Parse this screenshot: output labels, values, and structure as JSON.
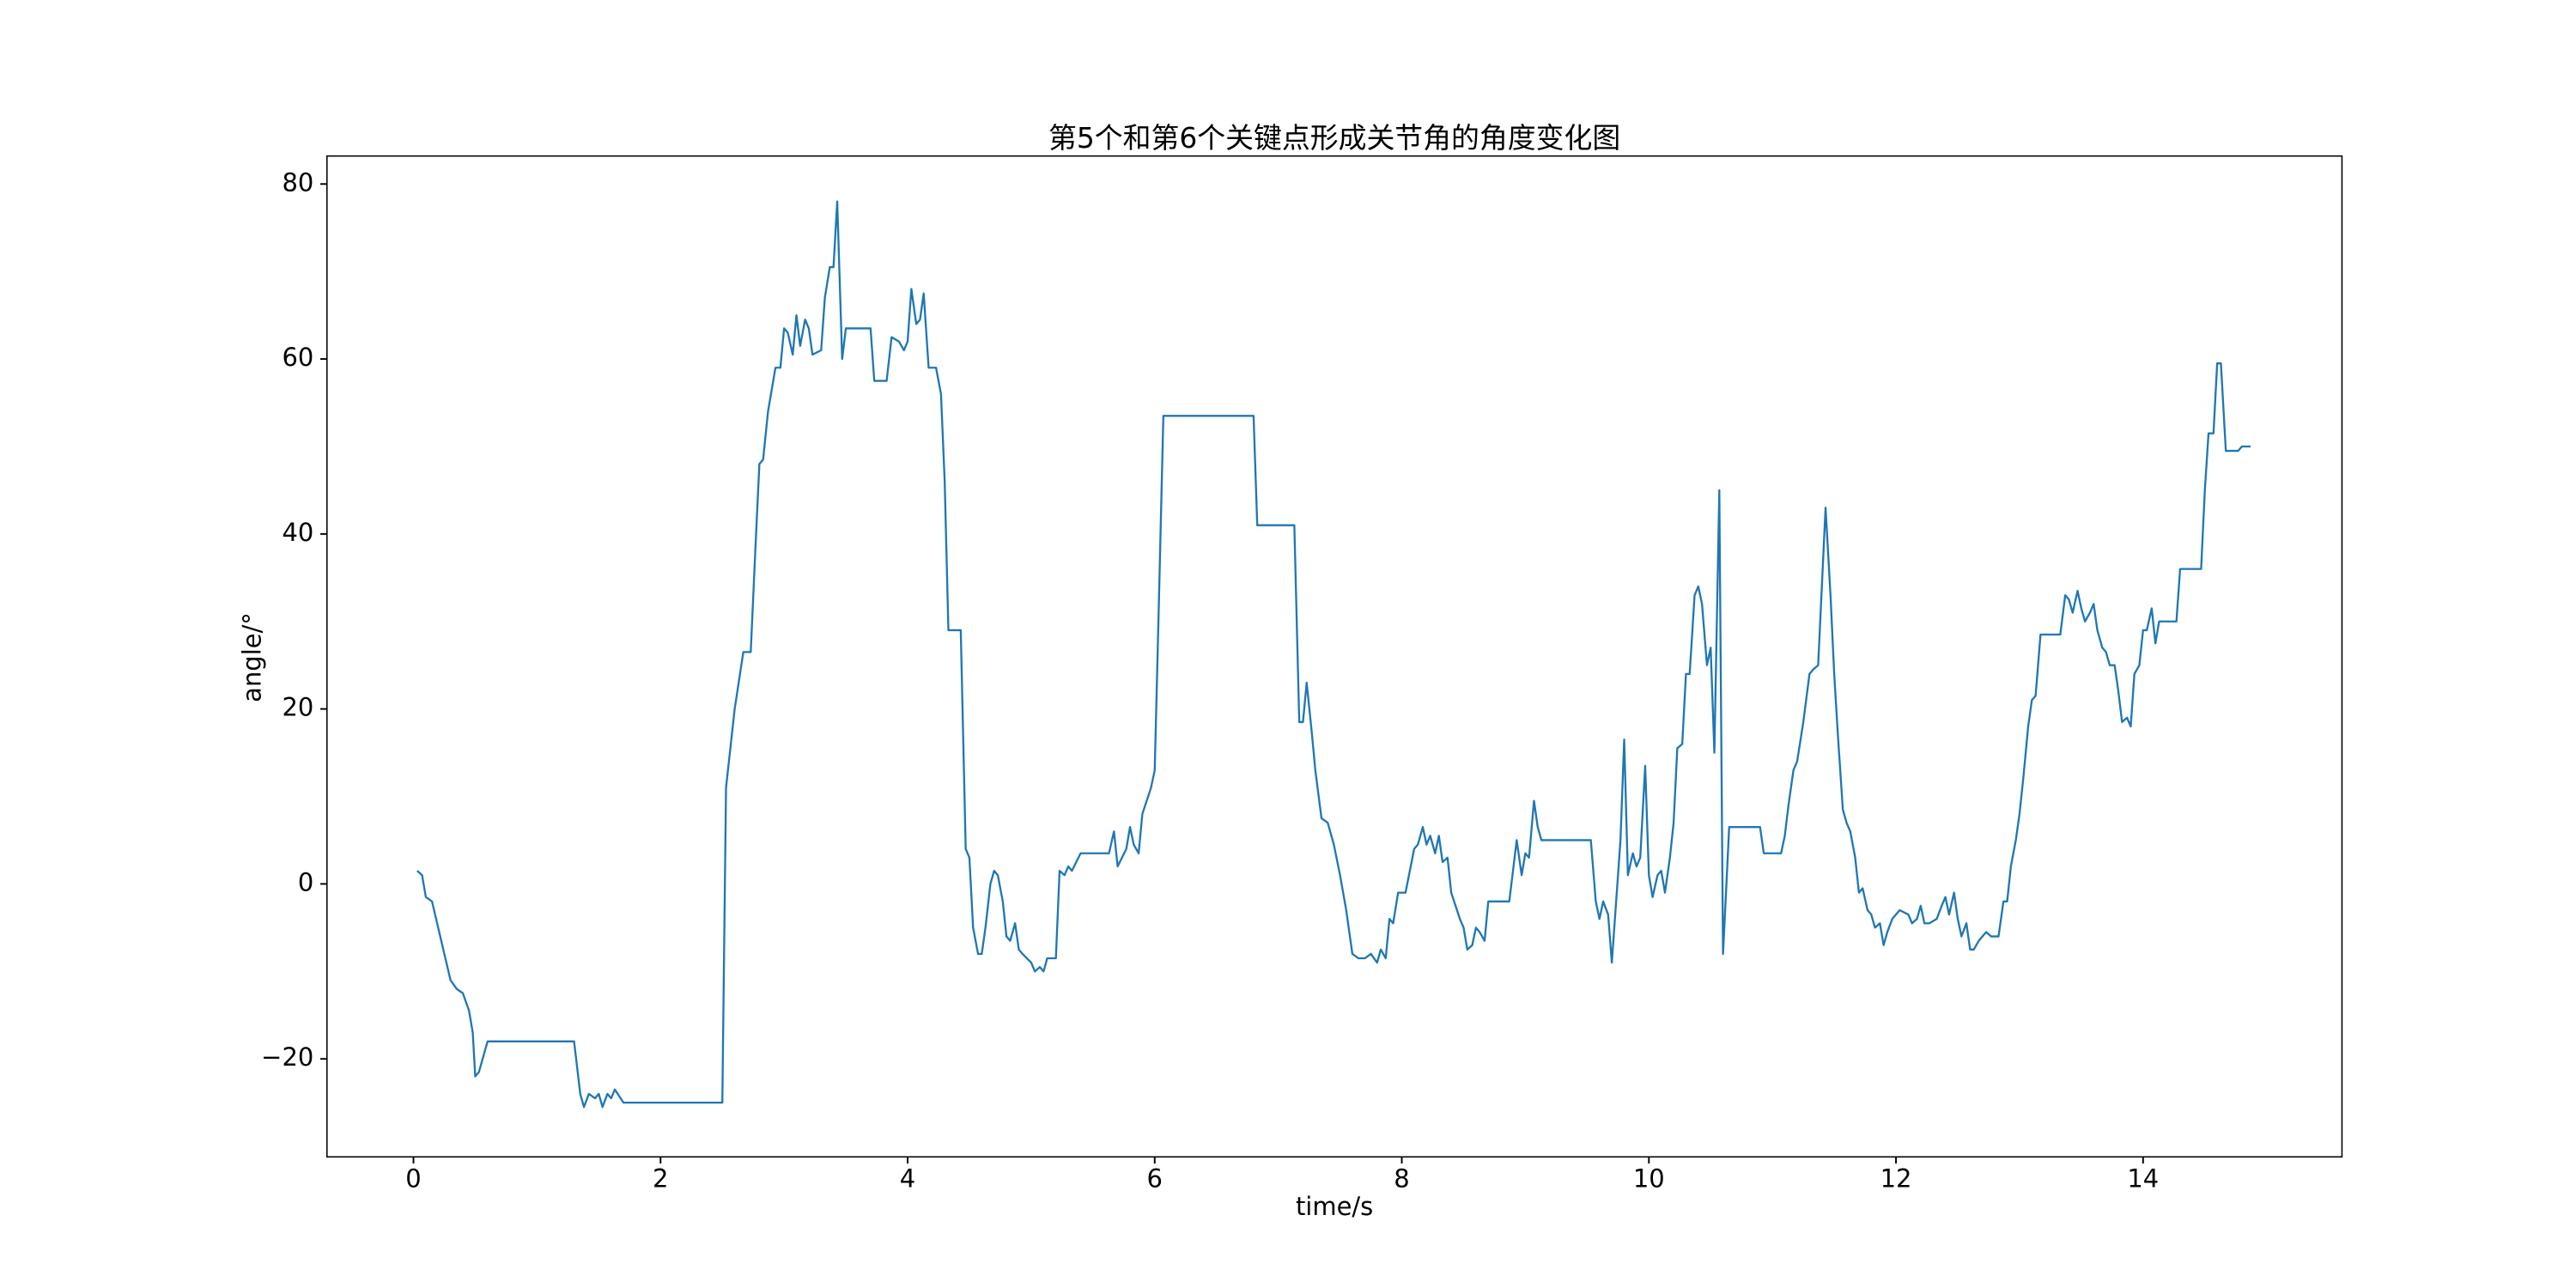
{
  "chart_data": {
    "type": "line",
    "title": "第5个和第6个关键点形成关节角的角度变化图",
    "x_label": "time/s",
    "y_label": "angle/°",
    "color": "#1f77b4",
    "xlim": [
      -0.7,
      15.61
    ],
    "ylim": [
      -31.2,
      83.2
    ],
    "xticks": [
      0,
      2,
      4,
      6,
      8,
      10,
      12,
      14
    ],
    "yticks": [
      {
        "value": -20,
        "label": "−20"
      },
      0,
      20,
      40,
      60,
      80
    ],
    "x": [
      0.03,
      0.07,
      0.1,
      0.15,
      0.2,
      0.3,
      0.35,
      0.4,
      0.45,
      0.48,
      0.5,
      0.53,
      0.6,
      1.3,
      1.35,
      1.38,
      1.42,
      1.47,
      1.5,
      1.53,
      1.57,
      1.6,
      1.63,
      1.7,
      2.5,
      2.53,
      2.6,
      2.67,
      2.73,
      2.77,
      2.8,
      2.83,
      2.87,
      2.93,
      2.97,
      3.0,
      3.03,
      3.07,
      3.1,
      3.13,
      3.17,
      3.2,
      3.23,
      3.3,
      3.33,
      3.37,
      3.4,
      3.43,
      3.47,
      3.5,
      3.7,
      3.73,
      3.83,
      3.87,
      3.93,
      3.97,
      4.0,
      4.03,
      4.07,
      4.1,
      4.13,
      4.17,
      4.23,
      4.27,
      4.3,
      4.33,
      4.43,
      4.47,
      4.5,
      4.53,
      4.57,
      4.6,
      4.63,
      4.67,
      4.7,
      4.73,
      4.77,
      4.8,
      4.83,
      4.87,
      4.9,
      4.93,
      5.0,
      5.03,
      5.07,
      5.1,
      5.13,
      5.2,
      5.23,
      5.27,
      5.3,
      5.33,
      5.4,
      5.63,
      5.67,
      5.7,
      5.77,
      5.8,
      5.83,
      5.87,
      5.9,
      5.97,
      6.0,
      6.03,
      6.07,
      6.8,
      6.83,
      7.13,
      7.17,
      7.2,
      7.23,
      7.27,
      7.3,
      7.35,
      7.4,
      7.45,
      7.5,
      7.55,
      7.6,
      7.65,
      7.7,
      7.75,
      7.8,
      7.83,
      7.87,
      7.9,
      7.93,
      7.97,
      8.03,
      8.1,
      8.13,
      8.17,
      8.2,
      8.23,
      8.27,
      8.3,
      8.33,
      8.37,
      8.4,
      8.47,
      8.5,
      8.53,
      8.57,
      8.6,
      8.63,
      8.67,
      8.7,
      8.87,
      8.93,
      8.97,
      9.0,
      9.03,
      9.07,
      9.1,
      9.13,
      9.53,
      9.57,
      9.6,
      9.63,
      9.67,
      9.7,
      9.73,
      9.77,
      9.8,
      9.83,
      9.87,
      9.9,
      9.93,
      9.97,
      10.0,
      10.03,
      10.07,
      10.1,
      10.13,
      10.17,
      10.2,
      10.23,
      10.27,
      10.3,
      10.33,
      10.37,
      10.4,
      10.43,
      10.47,
      10.5,
      10.53,
      10.57,
      10.6,
      10.65,
      10.9,
      10.93,
      11.07,
      11.1,
      11.13,
      11.17,
      11.2,
      11.25,
      11.3,
      11.33,
      11.37,
      11.4,
      11.43,
      11.47,
      11.5,
      11.53,
      11.57,
      11.6,
      11.63,
      11.67,
      11.7,
      11.73,
      11.77,
      11.8,
      11.83,
      11.87,
      11.9,
      11.93,
      11.97,
      12.03,
      12.1,
      12.13,
      12.17,
      12.2,
      12.23,
      12.27,
      12.33,
      12.37,
      12.4,
      12.43,
      12.47,
      12.5,
      12.53,
      12.57,
      12.6,
      12.63,
      12.67,
      12.7,
      12.73,
      12.77,
      12.83,
      12.87,
      12.9,
      12.93,
      12.97,
      13.0,
      13.03,
      13.07,
      13.1,
      13.13,
      13.17,
      13.33,
      13.37,
      13.4,
      13.43,
      13.47,
      13.5,
      13.53,
      13.57,
      13.6,
      13.63,
      13.67,
      13.7,
      13.73,
      13.77,
      13.8,
      13.83,
      13.87,
      13.9,
      13.93,
      13.97,
      14.0,
      14.03,
      14.07,
      14.1,
      14.13,
      14.27,
      14.3,
      14.47,
      14.5,
      14.53,
      14.57,
      14.6,
      14.63,
      14.67,
      14.77,
      14.8,
      14.87
    ],
    "values": [
      1.5,
      1,
      -1.5,
      -2,
      -5,
      -11,
      -12,
      -12.5,
      -14.5,
      -17,
      -22,
      -21.5,
      -18,
      -18,
      -24,
      -25.5,
      -24,
      -24.5,
      -24,
      -25.5,
      -24,
      -24.5,
      -23.5,
      -25,
      -25,
      11,
      20,
      26.5,
      26.5,
      39,
      48,
      48.5,
      54,
      59,
      59,
      63.5,
      63,
      60.5,
      65,
      61.5,
      64.5,
      63.5,
      60.5,
      61,
      67,
      70.5,
      70.5,
      78,
      60,
      63.5,
      63.5,
      57.5,
      57.5,
      62.5,
      62,
      61,
      62,
      68,
      64,
      64.5,
      67.5,
      59,
      59,
      56,
      46,
      29,
      29,
      4,
      3,
      -5,
      -8,
      -8,
      -5,
      0,
      1.5,
      1,
      -2,
      -6,
      -6.5,
      -4.5,
      -7.5,
      -8,
      -9,
      -10,
      -9.5,
      -10,
      -8.5,
      -8.5,
      1.5,
      1,
      2,
      1.5,
      3.5,
      3.5,
      6,
      2,
      4,
      6.5,
      4.5,
      3.5,
      8,
      11,
      13,
      30,
      53.5,
      53.5,
      41,
      41,
      18.5,
      18.5,
      23,
      17.5,
      13,
      7.5,
      7,
      4.5,
      1,
      -3,
      -8,
      -8.5,
      -8.5,
      -8,
      -9,
      -7.5,
      -8.5,
      -4,
      -4.5,
      -1,
      -1,
      4,
      4.5,
      6.5,
      4.5,
      5.5,
      3.5,
      5.5,
      2.5,
      3,
      -1,
      -4,
      -5,
      -7.5,
      -7,
      -5,
      -5.5,
      -6.5,
      -2,
      -2,
      5,
      1,
      3.5,
      3,
      9.5,
      6.5,
      5,
      5,
      -2,
      -4,
      -2,
      -3.5,
      -9,
      -3,
      5,
      16.5,
      1,
      3.5,
      2,
      3,
      13.5,
      1,
      -1.5,
      1,
      1.5,
      -1,
      3,
      7,
      15.5,
      16,
      24,
      24,
      33,
      34,
      32,
      25,
      27,
      15,
      45,
      -8,
      6.5,
      6.5,
      3.5,
      3.5,
      5.5,
      9,
      13,
      14,
      18.5,
      24,
      24.5,
      25,
      34,
      43,
      33,
      24,
      17,
      8.5,
      7,
      6,
      3,
      -1,
      -0.5,
      -3,
      -3.5,
      -5,
      -4.5,
      -7,
      -5.5,
      -4,
      -3,
      -3.5,
      -4.5,
      -4,
      -2.5,
      -4.5,
      -4.5,
      -4,
      -2.5,
      -1.5,
      -3.5,
      -1,
      -4,
      -6,
      -4.5,
      -7.5,
      -7.5,
      -6.5,
      -6,
      -5.5,
      -6,
      -6,
      -2,
      -2,
      2,
      5,
      8,
      12,
      18,
      21,
      21.5,
      28.5,
      28.5,
      33,
      32.5,
      31,
      33.5,
      31.5,
      30,
      31,
      32,
      29,
      27,
      26.5,
      25,
      25,
      22,
      18.5,
      19,
      18,
      24,
      25,
      29,
      29,
      31.5,
      27.5,
      30,
      30,
      36,
      36,
      45,
      51.5,
      51.5,
      59.5,
      59.5,
      49.5,
      49.5,
      50,
      50
    ]
  }
}
